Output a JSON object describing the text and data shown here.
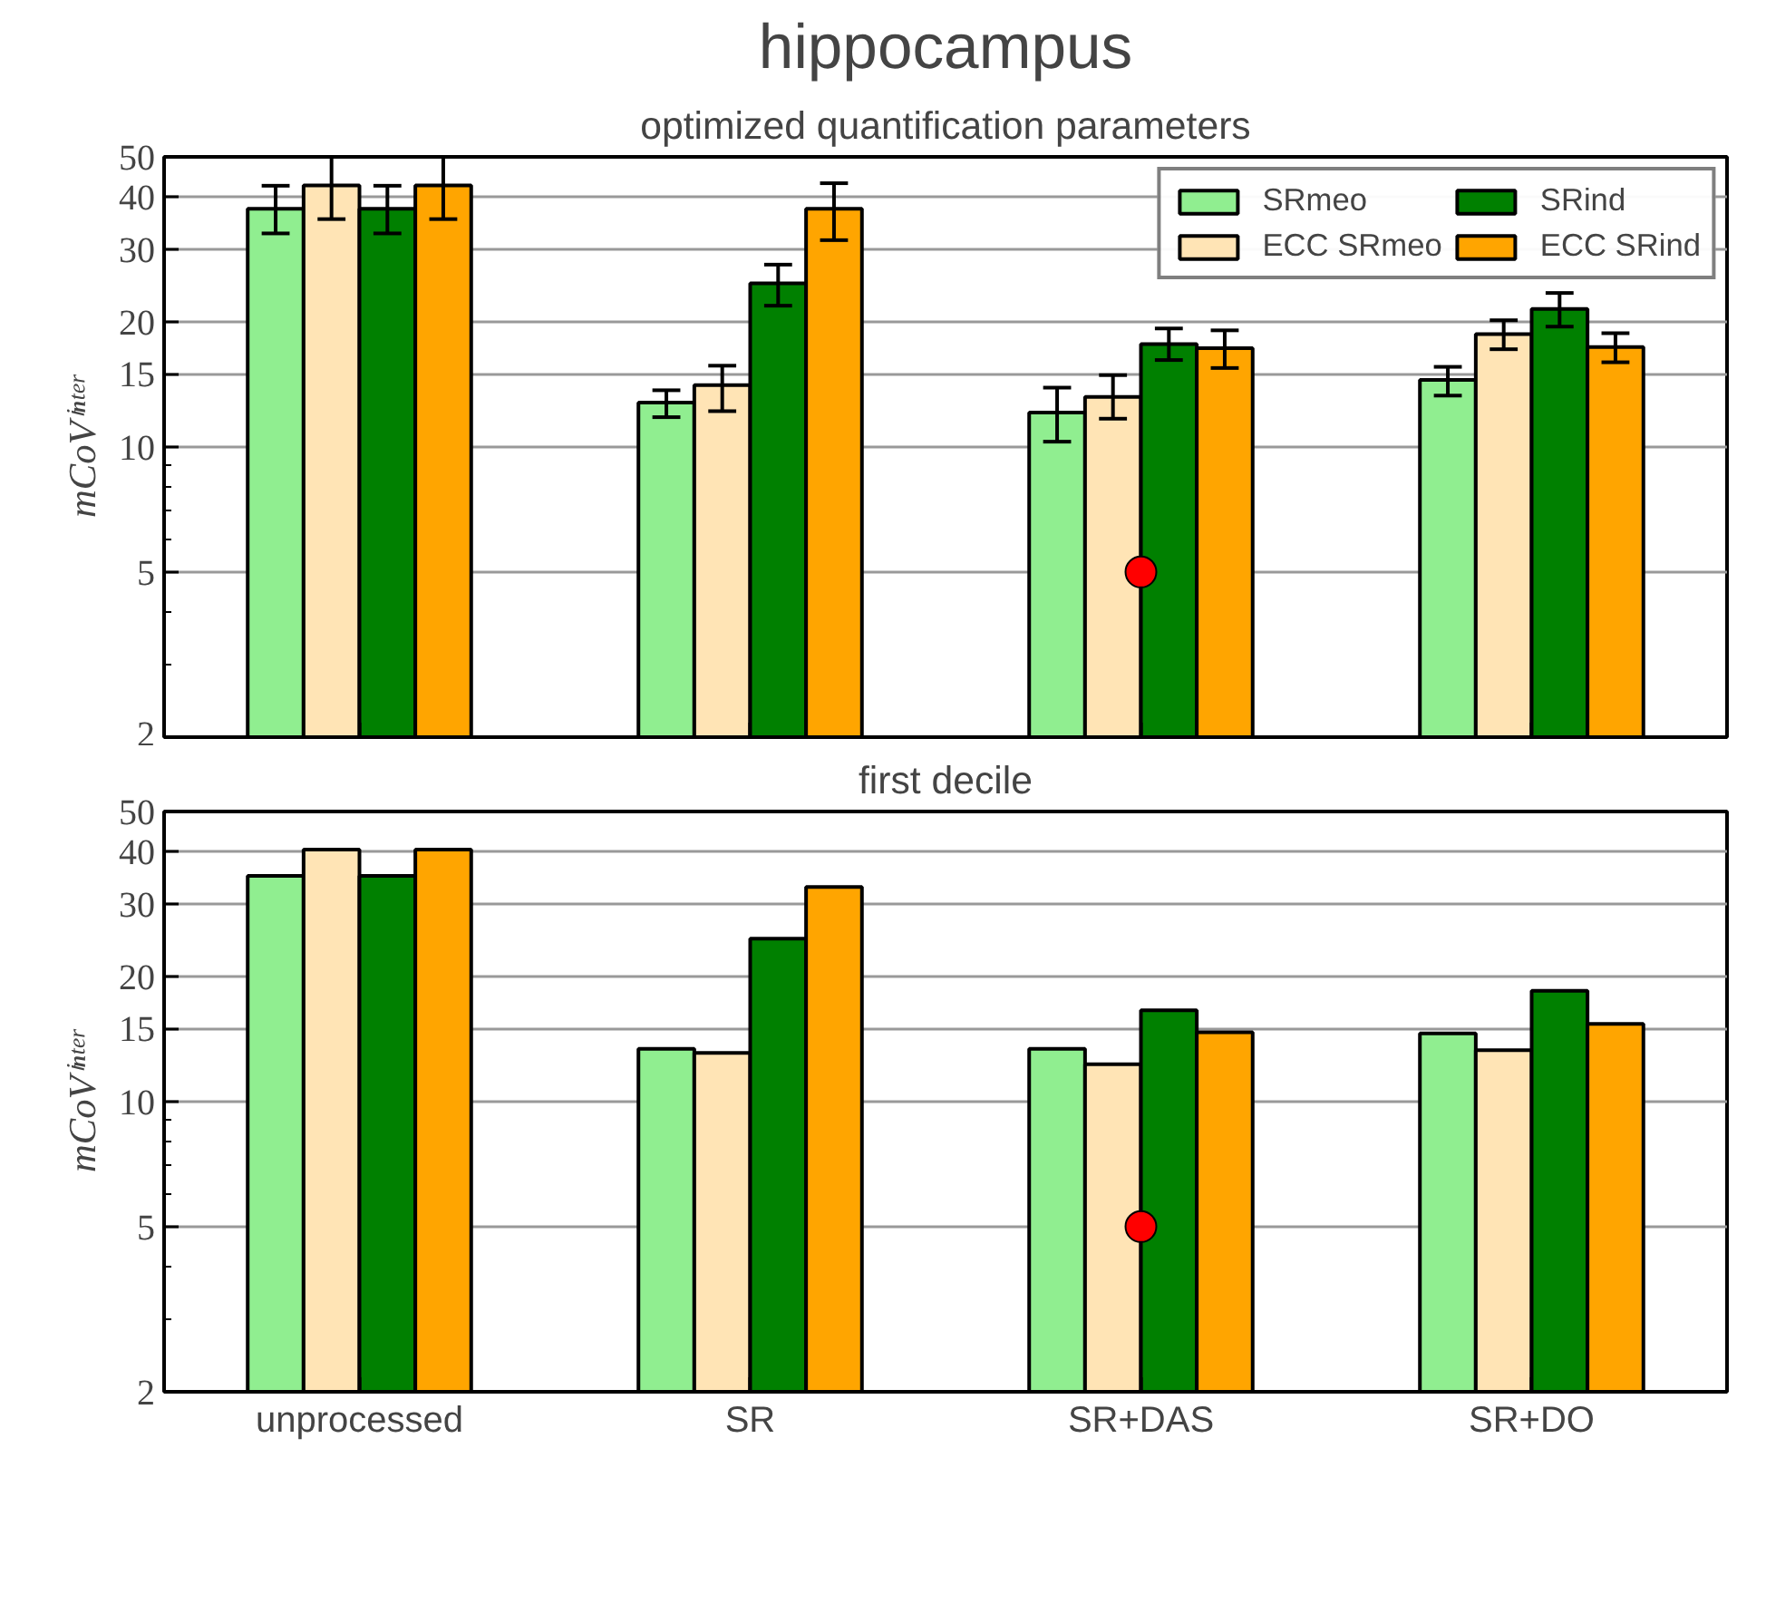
{
  "chart_data": [
    {
      "type": "bar",
      "title": "hippocampus",
      "subtitle": "optimized quantification parameters",
      "ylabel": "mCoVⁱⁿᵗᵉʳ",
      "categories": [
        "unprocessed",
        "SR",
        "SR+DAS",
        "SR+DO"
      ],
      "log": true,
      "ylim": [
        2,
        50
      ],
      "yticks": [
        2,
        5,
        10,
        15,
        20,
        30,
        40,
        50
      ],
      "grid": "y",
      "legend": "top right",
      "tick_labels": "y",
      "series": [
        {
          "name": "SRmeo",
          "color": "#90ee90",
          "values": [
            37.5,
            12.8,
            12.1,
            14.5
          ],
          "errors": [
            [
              32.7,
              42.6
            ],
            [
              11.8,
              13.7
            ],
            [
              10.3,
              13.9
            ],
            [
              13.3,
              15.6
            ]
          ]
        },
        {
          "name": "ECC SRmeo",
          "color": "#ffe4b5",
          "values": [
            42.7,
            14.1,
            13.2,
            18.7
          ],
          "errors": [
            [
              35.4,
              50
            ],
            [
              12.2,
              15.7
            ],
            [
              11.7,
              14.9
            ],
            [
              17.2,
              20.2
            ]
          ]
        },
        {
          "name": "SRind",
          "color": "#008000",
          "values": [
            37.5,
            24.8,
            17.7,
            21.5
          ],
          "errors": [
            [
              32.7,
              42.6
            ],
            [
              21.9,
              27.5
            ],
            [
              16.2,
              19.3
            ],
            [
              19.5,
              23.5
            ]
          ]
        },
        {
          "name": "ECC SRind",
          "color": "#ffa500",
          "values": [
            42.7,
            37.5,
            17.3,
            17.4
          ],
          "errors": [
            [
              35.4,
              50
            ],
            [
              31.5,
              43.2
            ],
            [
              15.5,
              19.1
            ],
            [
              16.0,
              18.8
            ]
          ]
        },
        {
          "type": "scatter",
          "x": [
            "SR+DAS"
          ],
          "values": [
            5
          ],
          "color": "#ff0000",
          "marker": "circle"
        }
      ]
    },
    {
      "type": "bar",
      "title": "first decile",
      "ylabel": "mCoVⁱⁿᵗᵉʳ",
      "categories": [
        "unprocessed",
        "SR",
        "SR+DAS",
        "SR+DO"
      ],
      "log": true,
      "ylim": [
        2,
        50
      ],
      "yticks": [
        2,
        5,
        10,
        15,
        20,
        30,
        40,
        50
      ],
      "grid": "y",
      "series": [
        {
          "color": "#90ee90",
          "values": [
            35.0,
            13.4,
            13.4,
            14.6
          ]
        },
        {
          "color": "#ffe4b5",
          "values": [
            40.5,
            13.1,
            12.3,
            13.3
          ]
        },
        {
          "color": "#008000",
          "values": [
            35.0,
            24.7,
            16.6,
            18.5
          ]
        },
        {
          "color": "#ffa500",
          "values": [
            40.5,
            32.9,
            14.7,
            15.4
          ]
        },
        {
          "type": "scatter",
          "x": [
            "SR+DAS"
          ],
          "values": [
            5
          ],
          "color": "#ff0000",
          "marker": "circle"
        }
      ]
    }
  ]
}
